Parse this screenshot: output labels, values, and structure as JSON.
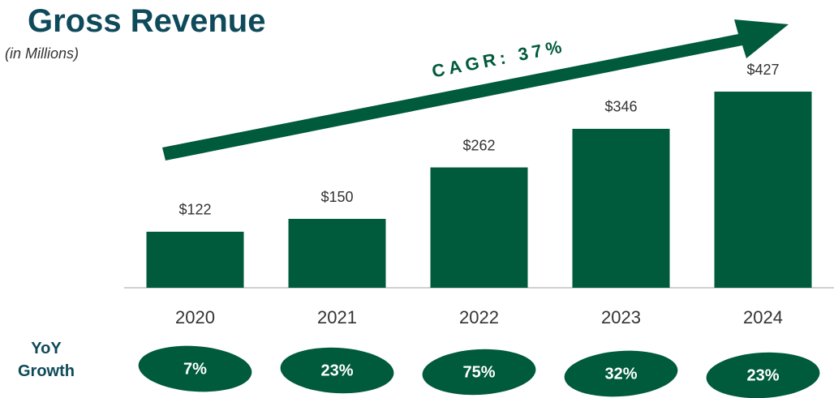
{
  "chart_data": {
    "type": "bar",
    "title": "Gross Revenue",
    "subtitle": "(in Millions)",
    "categories": [
      "2020",
      "2021",
      "2022",
      "2023",
      "2024"
    ],
    "values": [
      122,
      150,
      262,
      346,
      427
    ],
    "value_labels": [
      "$122",
      "$150",
      "$262",
      "$346",
      "$427"
    ],
    "color": "#005a3c",
    "ylim": [
      0,
      450
    ],
    "annotation": "CAGR: 37%",
    "growth": {
      "label": "YoY Growth",
      "values": [
        7,
        23,
        75,
        32,
        23
      ],
      "value_labels": [
        "7%",
        "23%",
        "75%",
        "32%",
        "23%"
      ]
    }
  }
}
